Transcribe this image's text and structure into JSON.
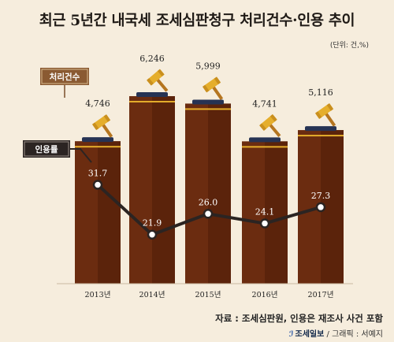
{
  "title": "최근 5년간 내국세 조세심판청구 처리건수·인용 추이",
  "unit": "(단위: 건,%)",
  "source": "자료 : 조세심판원, 인용은 재조사 사건 포함",
  "credit": {
    "logo": "조세일보",
    "suffix": " / 그래픽 : 서예지"
  },
  "colors": {
    "background": "#f6eddd",
    "bar": "#6b2c10",
    "bar_dark": "#4f1e08",
    "bar_stripe": "#e5ae2c",
    "bar_cap": "#263354",
    "line": "#2b2422",
    "legend_count_bg": "#8a5a32",
    "legend_rate_bg": "#2b2422"
  },
  "icons": [
    "gavel-icon"
  ],
  "chart_data": {
    "type": "bar",
    "categories": [
      "2013년",
      "2014년",
      "2015년",
      "2016년",
      "2017년"
    ],
    "series": [
      {
        "name": "처리건수",
        "type": "bar",
        "values": [
          4746,
          6246,
          5999,
          4741,
          5116
        ]
      },
      {
        "name": "인용률",
        "type": "line",
        "values": [
          31.7,
          21.9,
          26.0,
          24.1,
          27.3
        ]
      }
    ],
    "bar_labels": [
      "4,746",
      "6,246",
      "5,999",
      "4,741",
      "5,116"
    ],
    "line_labels": [
      "31.7",
      "21.9",
      "26.0",
      "24.1",
      "27.3"
    ],
    "legend": [
      "처리건수",
      "인용률"
    ],
    "grid": false
  }
}
